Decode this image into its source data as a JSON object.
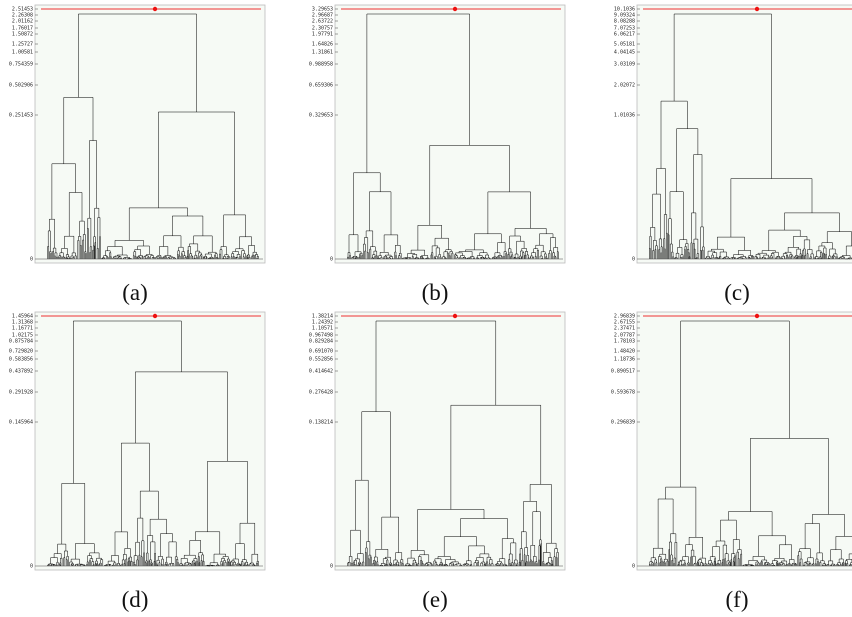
{
  "panels": [
    {
      "caption": "(a)",
      "ticks": [
        "2.51453",
        "2.26308",
        "2.01162",
        "1.76017",
        "1.50872",
        "1.25727",
        "1.00581",
        "0.754359",
        "0.502906",
        "0.251453",
        "0"
      ]
    },
    {
      "caption": "(b)",
      "ticks": [
        "3.29653",
        "2.96687",
        "2.63722",
        "2.30757",
        "1.97791",
        "1.64826",
        "1.31861",
        "0.988958",
        "0.659306",
        "0.329653",
        "0"
      ]
    },
    {
      "caption": "(c)",
      "ticks": [
        "10.1036",
        "9.09324",
        "8.08288",
        "7.07253",
        "6.06217",
        "5.05181",
        "4.04145",
        "3.03109",
        "2.02072",
        "1.01036",
        "0"
      ]
    },
    {
      "caption": "(d)",
      "ticks": [
        "1.45964",
        "1.31368",
        "1.16771",
        "1.02175",
        "0.875784",
        "0.729820",
        "0.583856",
        "0.437892",
        "0.291928",
        "0.145964",
        "0"
      ]
    },
    {
      "caption": "(e)",
      "ticks": [
        "1.38214",
        "1.24392",
        "1.10571",
        "0.967498",
        "0.829284",
        "0.691070",
        "0.552856",
        "0.414642",
        "0.276428",
        "0.138214",
        "0"
      ]
    },
    {
      "caption": "(f)",
      "ticks": [
        "2.96839",
        "2.67155",
        "2.37471",
        "2.07787",
        "1.78103",
        "1.48420",
        "1.18736",
        "0.890517",
        "0.593678",
        "0.296839",
        "0"
      ]
    }
  ]
}
